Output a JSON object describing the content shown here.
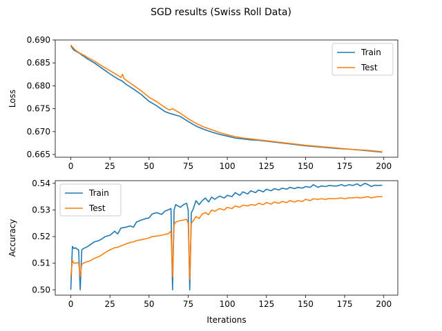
{
  "figure": {
    "title": "SGD results (Swiss Roll Data)"
  },
  "colors": {
    "train": "#1f77b4",
    "test": "#ff7f0e"
  },
  "chart_data": [
    {
      "type": "line",
      "xlabel": "",
      "ylabel": "Loss",
      "xlim": [
        -9.95,
        208.95
      ],
      "ylim": [
        0.6644,
        0.69
      ],
      "xticks": [
        0,
        25,
        50,
        75,
        100,
        125,
        150,
        175,
        200
      ],
      "yticks": [
        0.665,
        0.67,
        0.675,
        0.68,
        0.685,
        0.69
      ],
      "ytick_labels": [
        "0.665",
        "0.670",
        "0.675",
        "0.680",
        "0.685",
        "0.690"
      ],
      "legend_position": "top-right",
      "series": [
        {
          "name": "Train",
          "x": [
            0,
            1,
            2,
            3,
            4,
            5,
            6,
            7,
            8,
            9,
            10,
            15,
            20,
            25,
            30,
            33,
            35,
            40,
            45,
            50,
            55,
            60,
            63,
            65,
            70,
            75,
            80,
            85,
            90,
            95,
            100,
            105,
            110,
            115,
            120,
            125,
            130,
            140,
            150,
            160,
            170,
            180,
            190,
            199
          ],
          "y": [
            0.6888,
            0.6882,
            0.6878,
            0.6876,
            0.6874,
            0.6872,
            0.687,
            0.6867,
            0.6865,
            0.6863,
            0.686,
            0.685,
            0.6838,
            0.6826,
            0.6815,
            0.681,
            0.6804,
            0.6793,
            0.6781,
            0.6766,
            0.6756,
            0.6744,
            0.674,
            0.6738,
            0.6733,
            0.6722,
            0.6712,
            0.6705,
            0.6699,
            0.6694,
            0.669,
            0.6686,
            0.6684,
            0.6682,
            0.6681,
            0.6679,
            0.6677,
            0.6673,
            0.6669,
            0.6666,
            0.6663,
            0.6661,
            0.6658,
            0.6655
          ]
        },
        {
          "name": "Test",
          "x": [
            0,
            1,
            2,
            3,
            4,
            5,
            6,
            7,
            8,
            9,
            10,
            15,
            20,
            25,
            30,
            32,
            33,
            34,
            35,
            40,
            45,
            50,
            55,
            60,
            63,
            65,
            70,
            75,
            80,
            85,
            90,
            95,
            100,
            105,
            110,
            115,
            120,
            125,
            130,
            140,
            150,
            160,
            170,
            180,
            190,
            199
          ],
          "y": [
            0.6889,
            0.6885,
            0.6881,
            0.6878,
            0.6875,
            0.6873,
            0.6871,
            0.6869,
            0.6867,
            0.6866,
            0.6863,
            0.6854,
            0.6843,
            0.6833,
            0.6823,
            0.6818,
            0.6825,
            0.6816,
            0.6813,
            0.6801,
            0.6789,
            0.6775,
            0.6765,
            0.6753,
            0.6747,
            0.675,
            0.674,
            0.6728,
            0.6718,
            0.671,
            0.6704,
            0.6698,
            0.6693,
            0.6689,
            0.6686,
            0.6684,
            0.6682,
            0.668,
            0.6678,
            0.6674,
            0.667,
            0.6667,
            0.6664,
            0.6661,
            0.6659,
            0.6656
          ]
        }
      ]
    },
    {
      "type": "line",
      "xlabel": "Iterations",
      "ylabel": "Accuracy",
      "xlim": [
        -9.95,
        208.95
      ],
      "ylim": [
        0.498,
        0.541
      ],
      "xticks": [
        0,
        25,
        50,
        75,
        100,
        125,
        150,
        175,
        200
      ],
      "yticks": [
        0.5,
        0.51,
        0.52,
        0.53,
        0.54
      ],
      "ytick_labels": [
        "0.50",
        "0.51",
        "0.52",
        "0.53",
        "0.54"
      ],
      "legend_position": "top-left",
      "series": [
        {
          "name": "Train",
          "x": [
            0,
            1,
            2,
            3,
            4,
            5,
            6,
            7,
            8,
            10,
            12,
            15,
            18,
            20,
            22,
            25,
            28,
            30,
            32,
            35,
            38,
            40,
            42,
            45,
            48,
            50,
            52,
            55,
            58,
            60,
            62,
            64,
            65,
            66,
            67,
            70,
            72,
            74,
            75,
            76,
            77,
            78,
            80,
            82,
            84,
            86,
            88,
            90,
            92,
            95,
            98,
            100,
            103,
            105,
            108,
            110,
            113,
            115,
            118,
            120,
            123,
            125,
            128,
            130,
            133,
            135,
            138,
            140,
            143,
            145,
            148,
            150,
            153,
            155,
            158,
            160,
            163,
            165,
            168,
            170,
            173,
            175,
            178,
            180,
            183,
            185,
            188,
            190,
            192,
            194,
            196,
            199
          ],
          "y": [
            0.5,
            0.5163,
            0.5155,
            0.5158,
            0.5153,
            0.515,
            0.5,
            0.515,
            0.5155,
            0.516,
            0.5168,
            0.518,
            0.5185,
            0.5192,
            0.52,
            0.5205,
            0.522,
            0.521,
            0.5232,
            0.5235,
            0.524,
            0.5235,
            0.5255,
            0.5262,
            0.5268,
            0.527,
            0.5285,
            0.529,
            0.5283,
            0.5295,
            0.53,
            0.5305,
            0.5,
            0.53,
            0.532,
            0.531,
            0.532,
            0.5325,
            0.53,
            0.5,
            0.529,
            0.53,
            0.5335,
            0.532,
            0.5335,
            0.5345,
            0.533,
            0.5348,
            0.534,
            0.5352,
            0.5345,
            0.5355,
            0.535,
            0.5365,
            0.5355,
            0.5368,
            0.536,
            0.5372,
            0.5365,
            0.5375,
            0.5368,
            0.5378,
            0.5372,
            0.538,
            0.5375,
            0.5382,
            0.5378,
            0.5385,
            0.538,
            0.5385,
            0.5382,
            0.5388,
            0.5385,
            0.5395,
            0.5385,
            0.539,
            0.5388,
            0.5392,
            0.539,
            0.539,
            0.5395,
            0.539,
            0.5395,
            0.5392,
            0.5398,
            0.539,
            0.54,
            0.5395,
            0.5388,
            0.5393,
            0.5392,
            0.5393
          ]
        },
        {
          "name": "Test",
          "x": [
            0,
            1,
            2,
            3,
            4,
            5,
            6,
            7,
            8,
            10,
            12,
            15,
            18,
            20,
            22,
            25,
            28,
            30,
            32,
            35,
            38,
            40,
            42,
            45,
            48,
            50,
            52,
            55,
            58,
            60,
            62,
            64,
            65,
            66,
            67,
            70,
            72,
            74,
            75,
            76,
            77,
            78,
            80,
            82,
            84,
            86,
            88,
            90,
            92,
            95,
            98,
            100,
            103,
            105,
            108,
            110,
            113,
            115,
            118,
            120,
            123,
            125,
            128,
            130,
            133,
            135,
            138,
            140,
            143,
            145,
            148,
            150,
            153,
            155,
            158,
            160,
            163,
            165,
            168,
            170,
            173,
            175,
            178,
            180,
            183,
            185,
            188,
            190,
            192,
            194,
            196,
            199
          ],
          "y": [
            0.505,
            0.511,
            0.51,
            0.51,
            0.5102,
            0.51,
            0.505,
            0.5095,
            0.51,
            0.5105,
            0.5108,
            0.5118,
            0.5125,
            0.5132,
            0.514,
            0.515,
            0.5158,
            0.516,
            0.5165,
            0.5172,
            0.5178,
            0.518,
            0.5185,
            0.5188,
            0.5192,
            0.5195,
            0.52,
            0.5202,
            0.5205,
            0.5208,
            0.521,
            0.522,
            0.505,
            0.5245,
            0.5255,
            0.526,
            0.5262,
            0.5265,
            0.525,
            0.504,
            0.525,
            0.5258,
            0.5275,
            0.5268,
            0.5285,
            0.529,
            0.5282,
            0.53,
            0.5295,
            0.5305,
            0.53,
            0.531,
            0.5305,
            0.5315,
            0.531,
            0.5318,
            0.5315,
            0.532,
            0.5318,
            0.5325,
            0.532,
            0.5328,
            0.5322,
            0.533,
            0.5325,
            0.5332,
            0.5328,
            0.5335,
            0.533,
            0.5335,
            0.5332,
            0.534,
            0.5335,
            0.5342,
            0.534,
            0.5342,
            0.534,
            0.5343,
            0.5342,
            0.5343,
            0.5345,
            0.5342,
            0.5346,
            0.5345,
            0.5347,
            0.5345,
            0.5348,
            0.535,
            0.5345,
            0.5348,
            0.535,
            0.535
          ]
        }
      ]
    }
  ]
}
